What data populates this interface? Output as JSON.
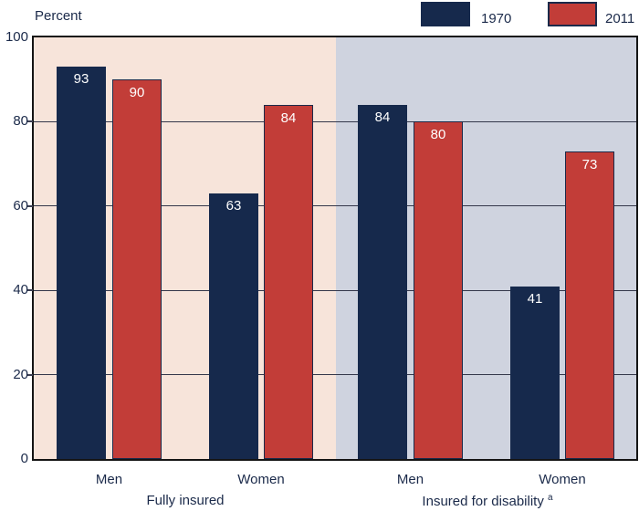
{
  "chart_data": {
    "type": "bar",
    "title": "",
    "ylabel": "Percent",
    "xlabel": "",
    "ylim": [
      0,
      100
    ],
    "yticks": [
      0,
      20,
      40,
      60,
      80,
      100
    ],
    "grid": "horizontal",
    "legend_position": "top-right",
    "legend": [
      {
        "name": "1970",
        "color": "#16294c"
      },
      {
        "name": "2011",
        "color": "#c23d38"
      }
    ],
    "groups": [
      {
        "label": "Fully insured",
        "footnote_marker": "",
        "background": "#f7e4da",
        "categories": [
          "Men",
          "Women"
        ],
        "series": [
          {
            "name": "1970",
            "values": [
              93,
              63
            ]
          },
          {
            "name": "2011",
            "values": [
              90,
              84
            ]
          }
        ]
      },
      {
        "label": "Insured for disability",
        "footnote_marker": "a",
        "background": "#cfd3df",
        "categories": [
          "Men",
          "Women"
        ],
        "series": [
          {
            "name": "1970",
            "values": [
              84,
              41
            ]
          },
          {
            "name": "2011",
            "values": [
              80,
              73
            ]
          }
        ]
      }
    ]
  },
  "colors": {
    "bar_1970": "#16294c",
    "bar_2011": "#c23d38",
    "bar_2011_border": "#1b2a4a",
    "plot_border": "#141414",
    "gridline": "#34374a",
    "text": "#1b2a4a",
    "value_label": "#ffffff",
    "bg_left": "#f7e4da",
    "bg_right": "#cfd3df"
  }
}
